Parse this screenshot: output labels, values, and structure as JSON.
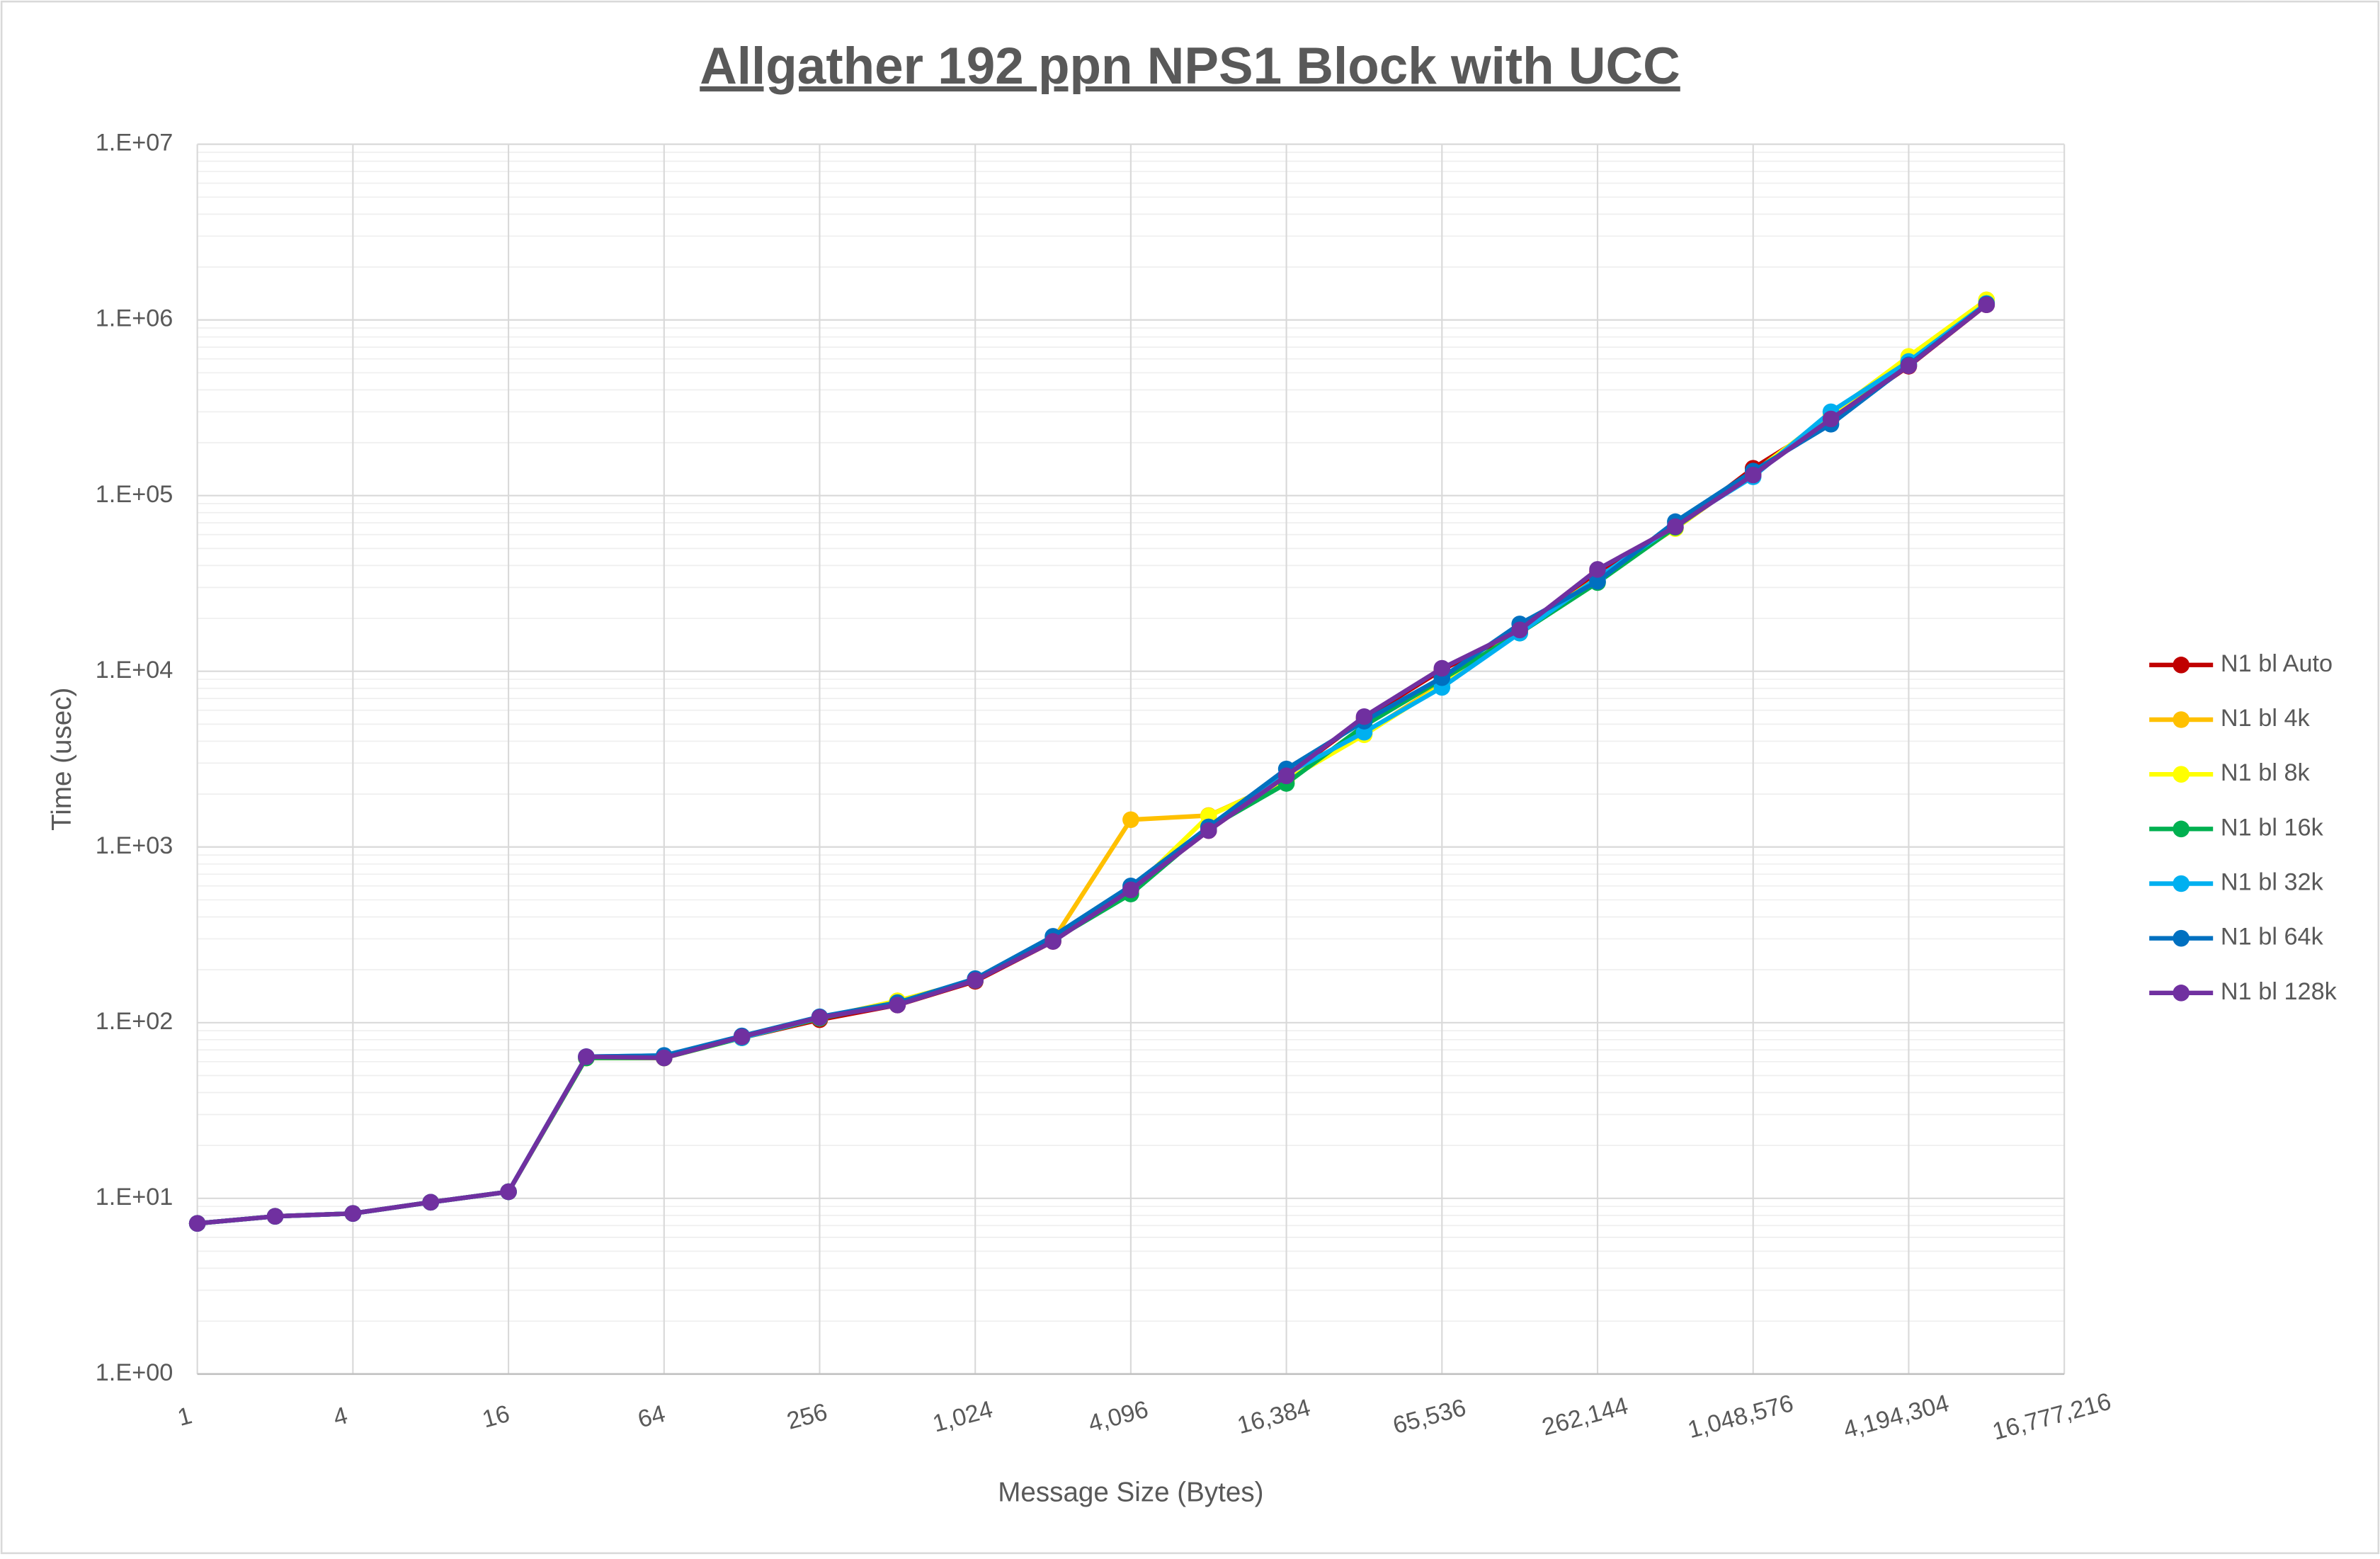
{
  "chart_data": {
    "type": "line",
    "title": "Allgather 192 ppn NPS1 Block with UCC",
    "x_label": "Message Size (Bytes)",
    "y_label": "Time (usec)",
    "xscale": "log",
    "yscale": "log",
    "grid": true,
    "minor_grid": true,
    "legend": "right",
    "x": [
      1,
      2,
      4,
      8,
      16,
      32,
      64,
      128,
      256,
      512,
      1024,
      2048,
      4096,
      8192,
      16384,
      32768,
      65536,
      131072,
      262144,
      524288,
      1048576,
      2097152,
      4194304,
      8388608
    ],
    "xlim": [
      1,
      16777216
    ],
    "xticks": [
      1,
      4,
      16,
      64,
      256,
      {
        "value": 1024,
        "label": "1,024"
      },
      {
        "value": 4096,
        "label": "4,096"
      },
      {
        "value": 16384,
        "label": "16,384"
      },
      {
        "value": 65536,
        "label": "65,536"
      },
      {
        "value": 262144,
        "label": "262,144"
      },
      {
        "value": 1048576,
        "label": "1,048,576"
      },
      {
        "value": 4194304,
        "label": "4,194,304"
      },
      {
        "value": 16777216,
        "label": "16,777,216"
      }
    ],
    "ylim": [
      1,
      10000000
    ],
    "yticks": [
      {
        "value": 1,
        "label": "1.E+00"
      },
      {
        "value": 10,
        "label": "1.E+01"
      },
      {
        "value": 100,
        "label": "1.E+02"
      },
      {
        "value": 1000,
        "label": "1.E+03"
      },
      {
        "value": 10000,
        "label": "1.E+04"
      },
      {
        "value": 100000,
        "label": "1.E+05"
      },
      {
        "value": 1000000,
        "label": "1.E+06"
      },
      {
        "value": 10000000,
        "label": "1.E+07"
      }
    ],
    "series": [
      {
        "name": "N1 bl Auto",
        "color": "#C00000",
        "values": [
          7.2,
          7.9,
          8.2,
          9.5,
          10.9,
          63,
          63,
          82,
          104,
          126,
          172,
          290,
          570,
          1240,
          2540,
          5400,
          10200,
          17000,
          37000,
          66000,
          143000,
          270000,
          545000,
          1220000
        ]
      },
      {
        "name": "N1 bl 4k",
        "color": "#FFC000",
        "values": [
          7.2,
          7.9,
          8.2,
          9.5,
          10.9,
          63,
          63,
          82,
          106,
          133,
          174,
          295,
          1430,
          1510,
          2400,
          4400,
          8500,
          17000,
          34000,
          65000,
          135000,
          280000,
          600000,
          1300000
        ]
      },
      {
        "name": "N1 bl 8k",
        "color": "#FFFF00",
        "values": [
          7.2,
          7.9,
          8.2,
          9.5,
          10.9,
          63,
          63,
          82,
          106,
          133,
          174,
          295,
          560,
          1500,
          2400,
          4350,
          8300,
          17000,
          34000,
          65000,
          135000,
          290000,
          620000,
          1300000
        ]
      },
      {
        "name": "N1 bl 16k",
        "color": "#00B050",
        "values": [
          7.2,
          7.9,
          8.2,
          9.5,
          10.9,
          63,
          63,
          82,
          106,
          128,
          174,
          295,
          540,
          1280,
          2300,
          4900,
          9000,
          16500,
          32000,
          66000,
          133000,
          270000,
          560000,
          1240000
        ]
      },
      {
        "name": "N1 bl 32k",
        "color": "#00B0F0",
        "values": [
          7.2,
          7.9,
          8.2,
          9.5,
          10.9,
          64,
          65,
          82,
          107,
          128,
          176,
          300,
          580,
          1300,
          2600,
          4500,
          8100,
          16500,
          34000,
          68000,
          128000,
          300000,
          580000,
          1240000
        ]
      },
      {
        "name": "N1 bl 64k",
        "color": "#0070C0",
        "values": [
          7.2,
          7.9,
          8.2,
          9.5,
          10.9,
          64,
          65,
          84,
          108,
          130,
          178,
          310,
          600,
          1300,
          2780,
          5200,
          9200,
          18600,
          32500,
          71000,
          138000,
          255000,
          555000,
          1230000
        ]
      },
      {
        "name": "N1 bl 128k",
        "color": "#7030A0",
        "values": [
          7.2,
          7.9,
          8.2,
          9.5,
          10.9,
          64,
          63,
          83,
          107,
          126,
          174,
          290,
          570,
          1240,
          2540,
          5520,
          10400,
          17200,
          38000,
          66500,
          131000,
          273000,
          548000,
          1220000
        ]
      }
    ]
  }
}
